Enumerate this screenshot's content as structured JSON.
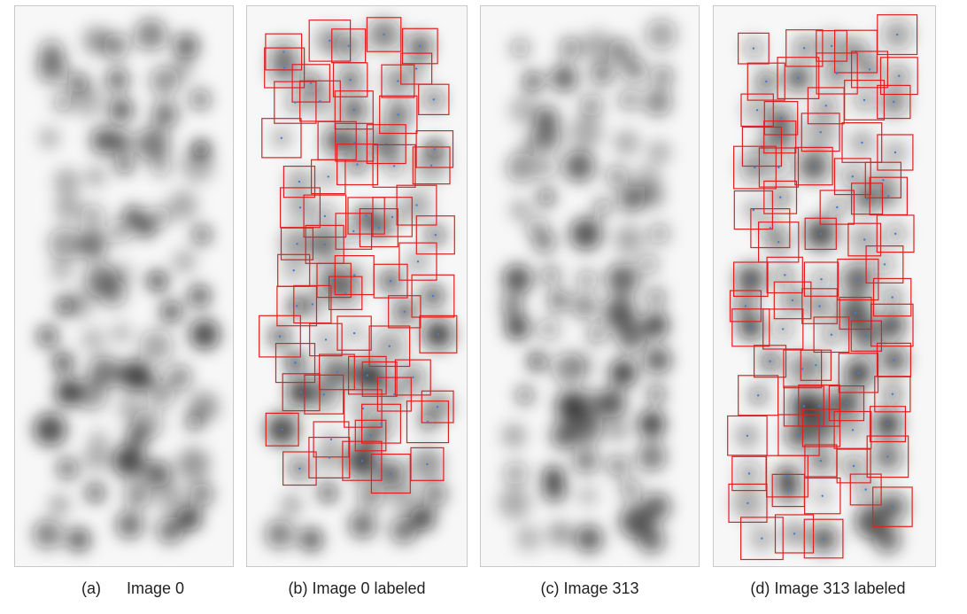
{
  "figure": {
    "panels": [
      {
        "id": "a",
        "caption_letter": "(a)",
        "caption_text": "Image 0",
        "labeled": false,
        "seed": 17,
        "boxes": 0
      },
      {
        "id": "b",
        "caption_letter": "(b)",
        "caption_text": "Image 0 labeled",
        "labeled": true,
        "seed": 17,
        "boxes": 70
      },
      {
        "id": "c",
        "caption_letter": "(c)",
        "caption_text": "Image 313",
        "labeled": false,
        "seed": 313,
        "boxes": 0
      },
      {
        "id": "d",
        "caption_letter": "(d)",
        "caption_text": "Image 313 labeled",
        "labeled": true,
        "seed": 313,
        "boxes": 78
      }
    ],
    "colors": {
      "box_stroke": "#e02020",
      "center_dot": "#3b7fd9",
      "background": "#f7f7f7",
      "blob": "#111111"
    }
  }
}
